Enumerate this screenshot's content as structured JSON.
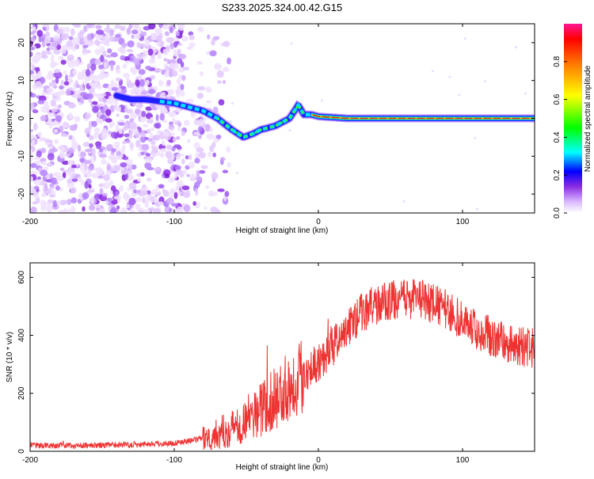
{
  "page_title": "S233.2025.324.00.42.G15",
  "chart_data": [
    {
      "type": "heatmap",
      "xlabel": "Height of straight line (km)",
      "ylabel": "Frequency (Hz)",
      "xlim": [
        -200,
        150
      ],
      "ylim": [
        -25,
        25
      ],
      "xticks": [
        -200,
        -100,
        0,
        100
      ],
      "yticks": [
        -20,
        -10,
        0,
        10,
        20
      ],
      "colorbar": {
        "label": "Normalized spectral amplitude",
        "range": [
          0,
          1
        ],
        "ticks": [
          "0.0",
          "0.2",
          "0.4",
          "0.6",
          "0.8"
        ]
      },
      "ridge": {
        "x": [
          -140,
          -130,
          -120,
          -110,
          -100,
          -90,
          -80,
          -70,
          -60,
          -52,
          -45,
          -40,
          -30,
          -20,
          -14,
          -10,
          -5,
          0,
          20,
          50,
          100,
          150
        ],
        "frequency": [
          6,
          5,
          5,
          4.5,
          4,
          3,
          2,
          0,
          -3,
          -5,
          -4,
          -3,
          -2,
          0,
          3.5,
          1,
          1,
          0.5,
          0,
          0,
          0,
          0
        ]
      }
    },
    {
      "type": "line",
      "xlabel": "Height of straight line (km)",
      "ylabel": "SNR (10 * v/v)",
      "xlim": [
        -200,
        150
      ],
      "ylim": [
        0,
        650
      ],
      "xticks": [
        -200,
        -100,
        0,
        100
      ],
      "yticks": [
        0,
        200,
        400,
        600
      ],
      "series": [
        {
          "name": "SNR",
          "color": "#ee3333",
          "x": [
            -200,
            -180,
            -160,
            -140,
            -120,
            -100,
            -90,
            -80,
            -70,
            -60,
            -50,
            -40,
            -30,
            -20,
            -10,
            0,
            10,
            20,
            30,
            40,
            50,
            60,
            70,
            80,
            90,
            100,
            110,
            120,
            130,
            140,
            150
          ],
          "y": [
            20,
            20,
            20,
            22,
            25,
            28,
            35,
            45,
            60,
            80,
            110,
            145,
            180,
            230,
            270,
            310,
            360,
            420,
            480,
            505,
            520,
            525,
            525,
            510,
            485,
            450,
            420,
            395,
            375,
            360,
            355
          ]
        }
      ]
    }
  ]
}
